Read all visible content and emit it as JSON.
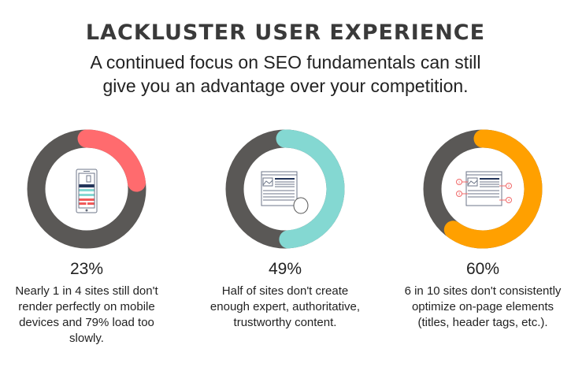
{
  "header": {
    "title": "LACKLUSTER USER EXPERIENCE",
    "subtitle_line1": "A continued focus on SEO fundamentals can still",
    "subtitle_line2": "give you an advantage over your competition."
  },
  "chart_data": [
    {
      "type": "pie",
      "variant": "donut",
      "value": 23,
      "label": "23%",
      "color": "#ff6b6e",
      "track_color": "#5a5856",
      "icon": "mobile-phone-icon",
      "description": "Nearly 1 in 4 sites still don't render perfectly on mobile devices and 79% load too slowly."
    },
    {
      "type": "pie",
      "variant": "donut",
      "value": 49,
      "label": "49%",
      "color": "#84d8d2",
      "track_color": "#5a5856",
      "icon": "webpage-magnifier-icon",
      "description": "Half of sites don't create enough expert, authoritative, trustworthy content."
    },
    {
      "type": "pie",
      "variant": "donut",
      "value": 60,
      "label": "60%",
      "color": "#ffa000",
      "track_color": "#5a5856",
      "icon": "webpage-elements-icon",
      "description": "6 in 10 sites don't consistently optimize on-page elements (titles, header tags, etc.)."
    }
  ],
  "icon_numbers": [
    "1",
    "2",
    "3",
    "4"
  ]
}
